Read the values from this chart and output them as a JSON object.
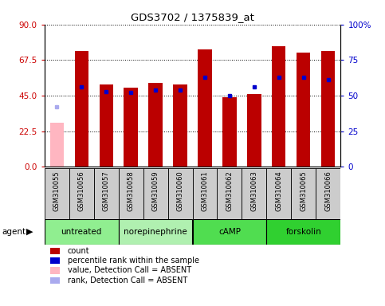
{
  "title": "GDS3702 / 1375839_at",
  "samples": [
    "GSM310055",
    "GSM310056",
    "GSM310057",
    "GSM310058",
    "GSM310059",
    "GSM310060",
    "GSM310061",
    "GSM310062",
    "GSM310063",
    "GSM310064",
    "GSM310065",
    "GSM310066"
  ],
  "bar_values": [
    28,
    73,
    52,
    50,
    53,
    52,
    74,
    44,
    46,
    76,
    72,
    73
  ],
  "bar_absent": [
    true,
    false,
    false,
    false,
    false,
    false,
    false,
    false,
    false,
    false,
    false,
    false
  ],
  "blue_squares": [
    42,
    56,
    53,
    52,
    54,
    54,
    63,
    50,
    56,
    63,
    63,
    61
  ],
  "blue_absent": [
    true,
    false,
    false,
    false,
    false,
    false,
    false,
    false,
    false,
    false,
    false,
    false
  ],
  "groups": [
    {
      "label": "untreated",
      "start": 0,
      "end": 3,
      "color": "#90ee90"
    },
    {
      "label": "norepinephrine",
      "start": 3,
      "end": 6,
      "color": "#b0f0b0"
    },
    {
      "label": "cAMP",
      "start": 6,
      "end": 9,
      "color": "#50dd50"
    },
    {
      "label": "forskolin",
      "start": 9,
      "end": 12,
      "color": "#30d030"
    }
  ],
  "ylim_left": [
    0,
    90
  ],
  "ylim_right": [
    0,
    100
  ],
  "yticks_left": [
    0,
    22.5,
    45,
    67.5,
    90
  ],
  "yticks_right": [
    0,
    25,
    50,
    75,
    100
  ],
  "bar_color": "#bb0000",
  "bar_absent_color": "#ffb6c1",
  "blue_color": "#0000cc",
  "blue_absent_color": "#aaaaee",
  "bar_width": 0.55,
  "legend_items": [
    {
      "color": "#bb0000",
      "label": "count",
      "marker": "square"
    },
    {
      "color": "#0000cc",
      "label": "percentile rank within the sample",
      "marker": "square"
    },
    {
      "color": "#ffb6c1",
      "label": "value, Detection Call = ABSENT",
      "marker": "square"
    },
    {
      "color": "#aaaaee",
      "label": "rank, Detection Call = ABSENT",
      "marker": "square"
    }
  ]
}
